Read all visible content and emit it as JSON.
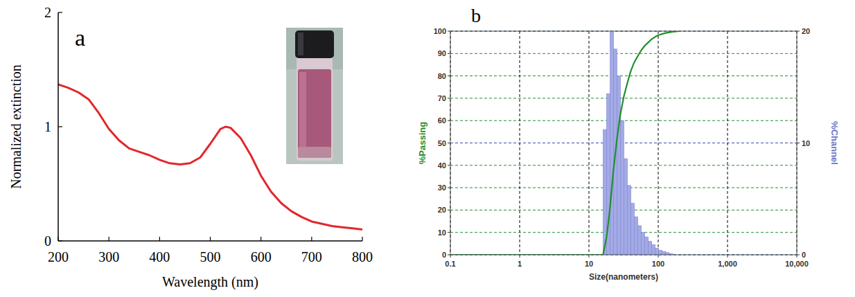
{
  "chart_data": [
    {
      "type": "line",
      "title": "a",
      "xlabel": "Wavelength  (nm)",
      "ylabel": "Normalized extinction",
      "x": [
        200,
        220,
        240,
        260,
        280,
        300,
        320,
        340,
        360,
        380,
        400,
        420,
        440,
        460,
        480,
        500,
        520,
        530,
        540,
        560,
        580,
        600,
        620,
        640,
        660,
        680,
        700,
        720,
        740,
        760,
        780,
        800
      ],
      "values": [
        1.37,
        1.34,
        1.3,
        1.24,
        1.12,
        0.98,
        0.88,
        0.81,
        0.78,
        0.75,
        0.71,
        0.68,
        0.67,
        0.68,
        0.73,
        0.85,
        0.98,
        1.0,
        0.99,
        0.9,
        0.75,
        0.57,
        0.43,
        0.33,
        0.26,
        0.21,
        0.17,
        0.15,
        0.13,
        0.12,
        0.11,
        0.1
      ],
      "color": "#e3262b",
      "xlim": [
        200,
        800
      ],
      "xticks": [
        200,
        300,
        400,
        500,
        600,
        700,
        800
      ],
      "ylim": [
        0,
        2
      ],
      "yticks": [
        0,
        1,
        2
      ]
    },
    {
      "type": "histogram",
      "title": "b",
      "xlabel": "Size(nanometers)",
      "ylabel": "%Passing",
      "y2label": "%Channel",
      "log": "x",
      "grid": true,
      "xlim": [
        0.1,
        10000
      ],
      "xticks": [
        0.1,
        1,
        10,
        100,
        {
          "value": 1000,
          "label": "1,000"
        },
        {
          "value": 10000,
          "label": "10,000"
        }
      ],
      "ylim": [
        0,
        100
      ],
      "yticks": [
        0,
        10,
        20,
        30,
        40,
        50,
        60,
        70,
        80,
        90,
        100
      ],
      "y2lim": [
        0,
        20
      ],
      "y2ticks": [
        0,
        10,
        20
      ],
      "series": [
        {
          "type": "bar",
          "axis": "y2",
          "color": "#a3aae6",
          "bins": [
            16,
            17.96,
            20.16,
            22.63,
            25.4,
            28.51,
            32,
            35.92,
            40.32,
            45.25,
            50.8,
            57.02,
            64,
            71.84,
            80.63,
            90.51,
            101.6,
            114,
            128,
            143.7,
            161.3,
            181
          ],
          "counts": [
            11.2,
            14.4,
            20,
            18.4,
            16,
            12,
            8.6,
            6.2,
            4.6,
            3.4,
            2.6,
            2.0,
            1.6,
            1.2,
            0.9,
            0.6,
            0.4,
            0.3,
            0.2,
            0.1,
            0.05
          ]
        },
        {
          "type": "line",
          "color": "#1f8f2a",
          "x": [
            0.1,
            1,
            10,
            16,
            18,
            20,
            22.6,
            25.4,
            28.5,
            32,
            36,
            40,
            45,
            51,
            57,
            64,
            72,
            81,
            91,
            102,
            128,
            161,
            200
          ],
          "values": [
            0,
            0,
            0,
            0,
            8,
            20,
            38,
            52,
            63,
            71,
            77,
            82,
            86,
            89,
            91.5,
            93.5,
            95,
            96.5,
            97.5,
            98.3,
            99.2,
            99.7,
            100
          ]
        }
      ]
    }
  ]
}
